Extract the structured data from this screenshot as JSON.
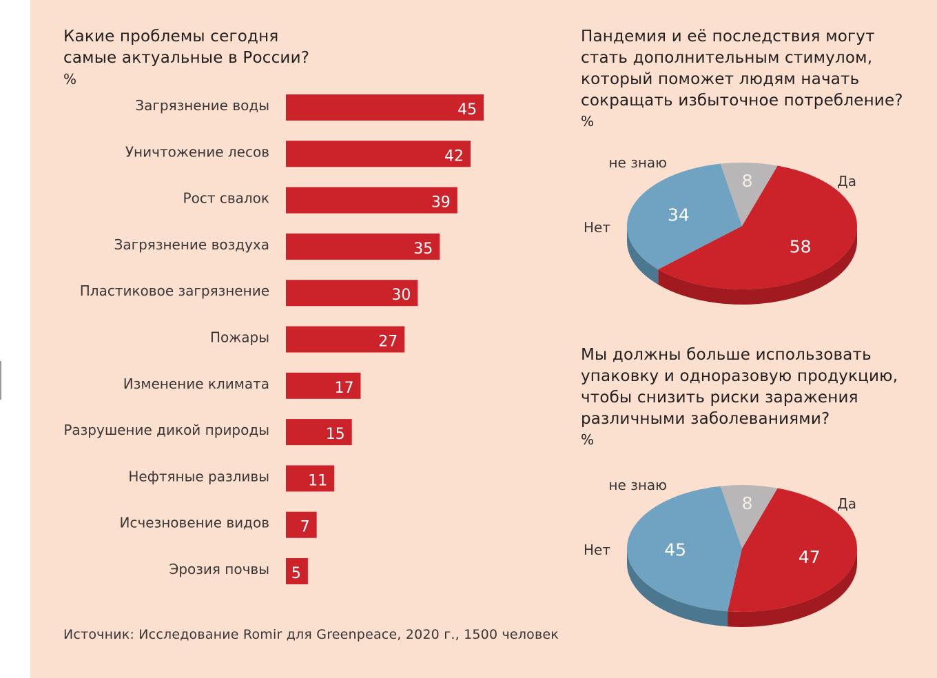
{
  "colors": {
    "background": "#fbdfcf",
    "bar": "#cc2229",
    "pie_yes": "#cc2229",
    "pie_yes_side": "#a01a20",
    "pie_no": "#6fa3c1",
    "pie_no_side": "#4b7890",
    "pie_dontknow": "#b8b6b6",
    "pie_dontknow_side": "#8e8c8c"
  },
  "chart_data": [
    {
      "type": "bar",
      "orientation": "horizontal",
      "title": "Какие проблемы сегодня\nсамые актуальные в России?",
      "unit": "%",
      "categories": [
        "Загрязнение воды",
        "Уничтожение лесов",
        "Рост свалок",
        "Загрязнение воздуха",
        "Пластиковое загрязнение",
        "Пожары",
        "Изменение климата",
        "Разрушение дикой природы",
        "Нефтяные разливы",
        "Исчезновение видов",
        "Эрозия почвы"
      ],
      "values": [
        45,
        42,
        39,
        35,
        30,
        27,
        17,
        15,
        11,
        7,
        5
      ]
    },
    {
      "type": "pie",
      "title": "Пандемия и её последствия могут\nстать дополнительным стимулом,\nкоторый поможет людям начать\nсокращать избыточное потребление?",
      "unit": "%",
      "categories": [
        "Да",
        "Нет",
        "не знаю"
      ],
      "values": [
        58,
        34,
        8
      ]
    },
    {
      "type": "pie",
      "title": "Мы должны больше использовать\nупаковку и одноразовую продукцию,\nчтобы снизить риски заражения\nразличными заболеваниями?",
      "unit": "%",
      "categories": [
        "Да",
        "Нет",
        "не знаю"
      ],
      "values": [
        47,
        45,
        8
      ]
    }
  ],
  "source": "Источник: Исследование Romir для Greenpeace, 2020 г., 1500 человек"
}
